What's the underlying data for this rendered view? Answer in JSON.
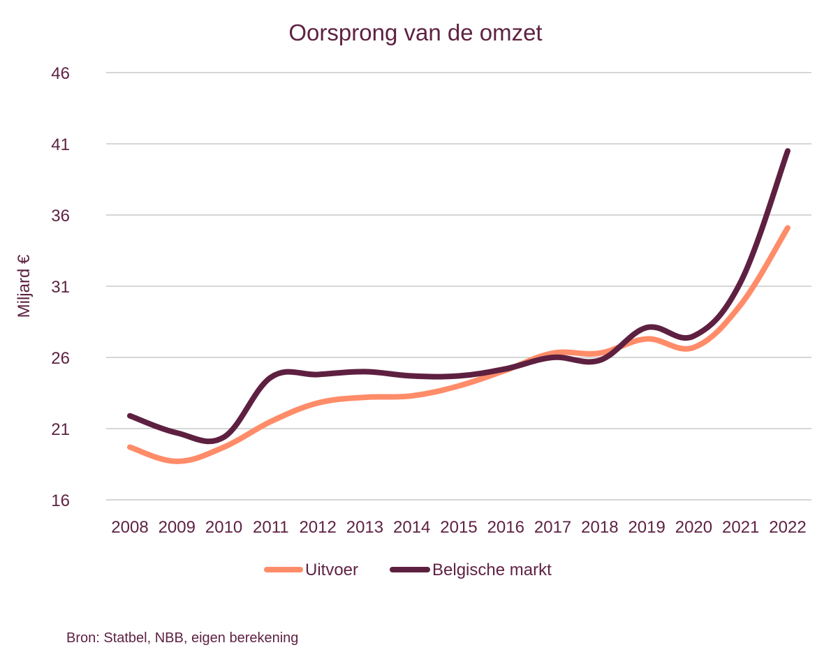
{
  "chart_data": {
    "type": "line",
    "title": "Oorsprong van de omzet",
    "xlabel": "",
    "ylabel": "Miljard €",
    "ylim": [
      16,
      46
    ],
    "yticks": [
      "16",
      "21",
      "26",
      "31",
      "36",
      "41",
      "46"
    ],
    "ytick_values": [
      16,
      21,
      26,
      31,
      36,
      41,
      46
    ],
    "grid": true,
    "legend_position": "bottom",
    "categories": [
      "2008",
      "2009",
      "2010",
      "2011",
      "2012",
      "2013",
      "2014",
      "2015",
      "2016",
      "2017",
      "2018",
      "2019",
      "2020",
      "2021",
      "2022"
    ],
    "series": [
      {
        "name": "Uitvoer",
        "color": "#ff8c69",
        "values": [
          19.7,
          18.7,
          19.7,
          21.5,
          22.8,
          23.2,
          23.3,
          24.0,
          25.1,
          26.3,
          26.3,
          27.3,
          26.7,
          29.7,
          35.1
        ]
      },
      {
        "name": "Belgische markt",
        "color": "#5e2040",
        "values": [
          21.9,
          20.7,
          20.4,
          24.6,
          24.8,
          25.0,
          24.7,
          24.7,
          25.2,
          26.0,
          25.8,
          28.1,
          27.5,
          31.3,
          40.5
        ]
      }
    ]
  },
  "source": "Bron: Statbel, NBB, eigen berekening"
}
